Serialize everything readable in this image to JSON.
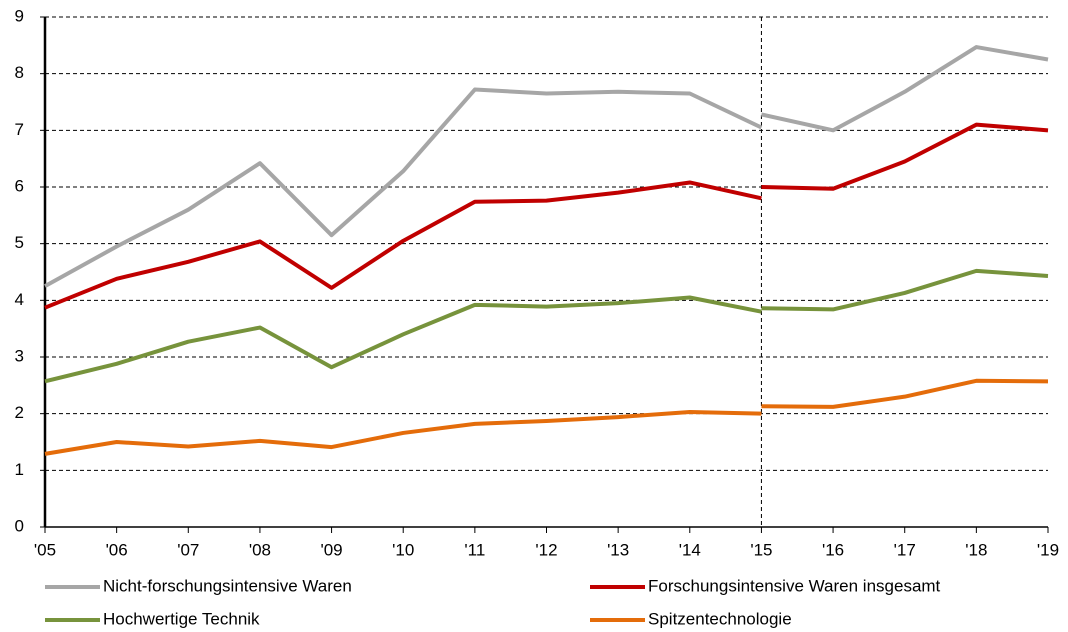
{
  "chart_data": {
    "type": "line",
    "categories": [
      "'05",
      "'06",
      "'07",
      "'08",
      "'09",
      "'10",
      "'11",
      "'12",
      "'13",
      "'14",
      "'15",
      "'16",
      "'17",
      "'18",
      "'19"
    ],
    "series": [
      {
        "name": "Nicht-forschungsintensive Waren",
        "color": "#a6a6a6",
        "values": [
          4.25,
          4.95,
          5.6,
          6.42,
          5.15,
          6.28,
          7.72,
          7.65,
          7.68,
          7.65,
          7.05,
          null,
          null,
          null,
          null
        ],
        "values_new": [
          null,
          null,
          null,
          null,
          null,
          null,
          null,
          null,
          null,
          null,
          7.28,
          7.0,
          7.68,
          8.47,
          8.25
        ]
      },
      {
        "name": "Forschungsintensive Waren insgesamt",
        "color": "#c00000",
        "values": [
          3.87,
          4.38,
          4.68,
          5.04,
          4.22,
          5.05,
          5.74,
          5.76,
          5.9,
          6.08,
          5.8,
          null,
          null,
          null,
          null
        ],
        "values_new": [
          null,
          null,
          null,
          null,
          null,
          null,
          null,
          null,
          null,
          null,
          6.0,
          5.97,
          6.45,
          7.1,
          7.0
        ]
      },
      {
        "name": "Hochwertige Technik",
        "color": "#77933c",
        "values": [
          2.57,
          2.88,
          3.27,
          3.52,
          2.82,
          3.4,
          3.92,
          3.89,
          3.95,
          4.05,
          3.8,
          null,
          null,
          null,
          null
        ],
        "values_new": [
          null,
          null,
          null,
          null,
          null,
          null,
          null,
          null,
          null,
          null,
          3.86,
          3.84,
          4.13,
          4.52,
          4.43
        ]
      },
      {
        "name": "Spitzentechnologie",
        "color": "#e46c0a",
        "values": [
          1.29,
          1.5,
          1.42,
          1.52,
          1.41,
          1.66,
          1.82,
          1.87,
          1.94,
          2.03,
          2.0,
          null,
          null,
          null,
          null
        ],
        "values_new": [
          null,
          null,
          null,
          null,
          null,
          null,
          null,
          null,
          null,
          null,
          2.13,
          2.12,
          2.3,
          2.58,
          2.57
        ]
      }
    ],
    "ylim": [
      0,
      9
    ],
    "yticks": [
      0,
      1,
      2,
      3,
      4,
      5,
      6,
      7,
      8,
      9
    ],
    "grid": true,
    "legend": "bottom"
  }
}
